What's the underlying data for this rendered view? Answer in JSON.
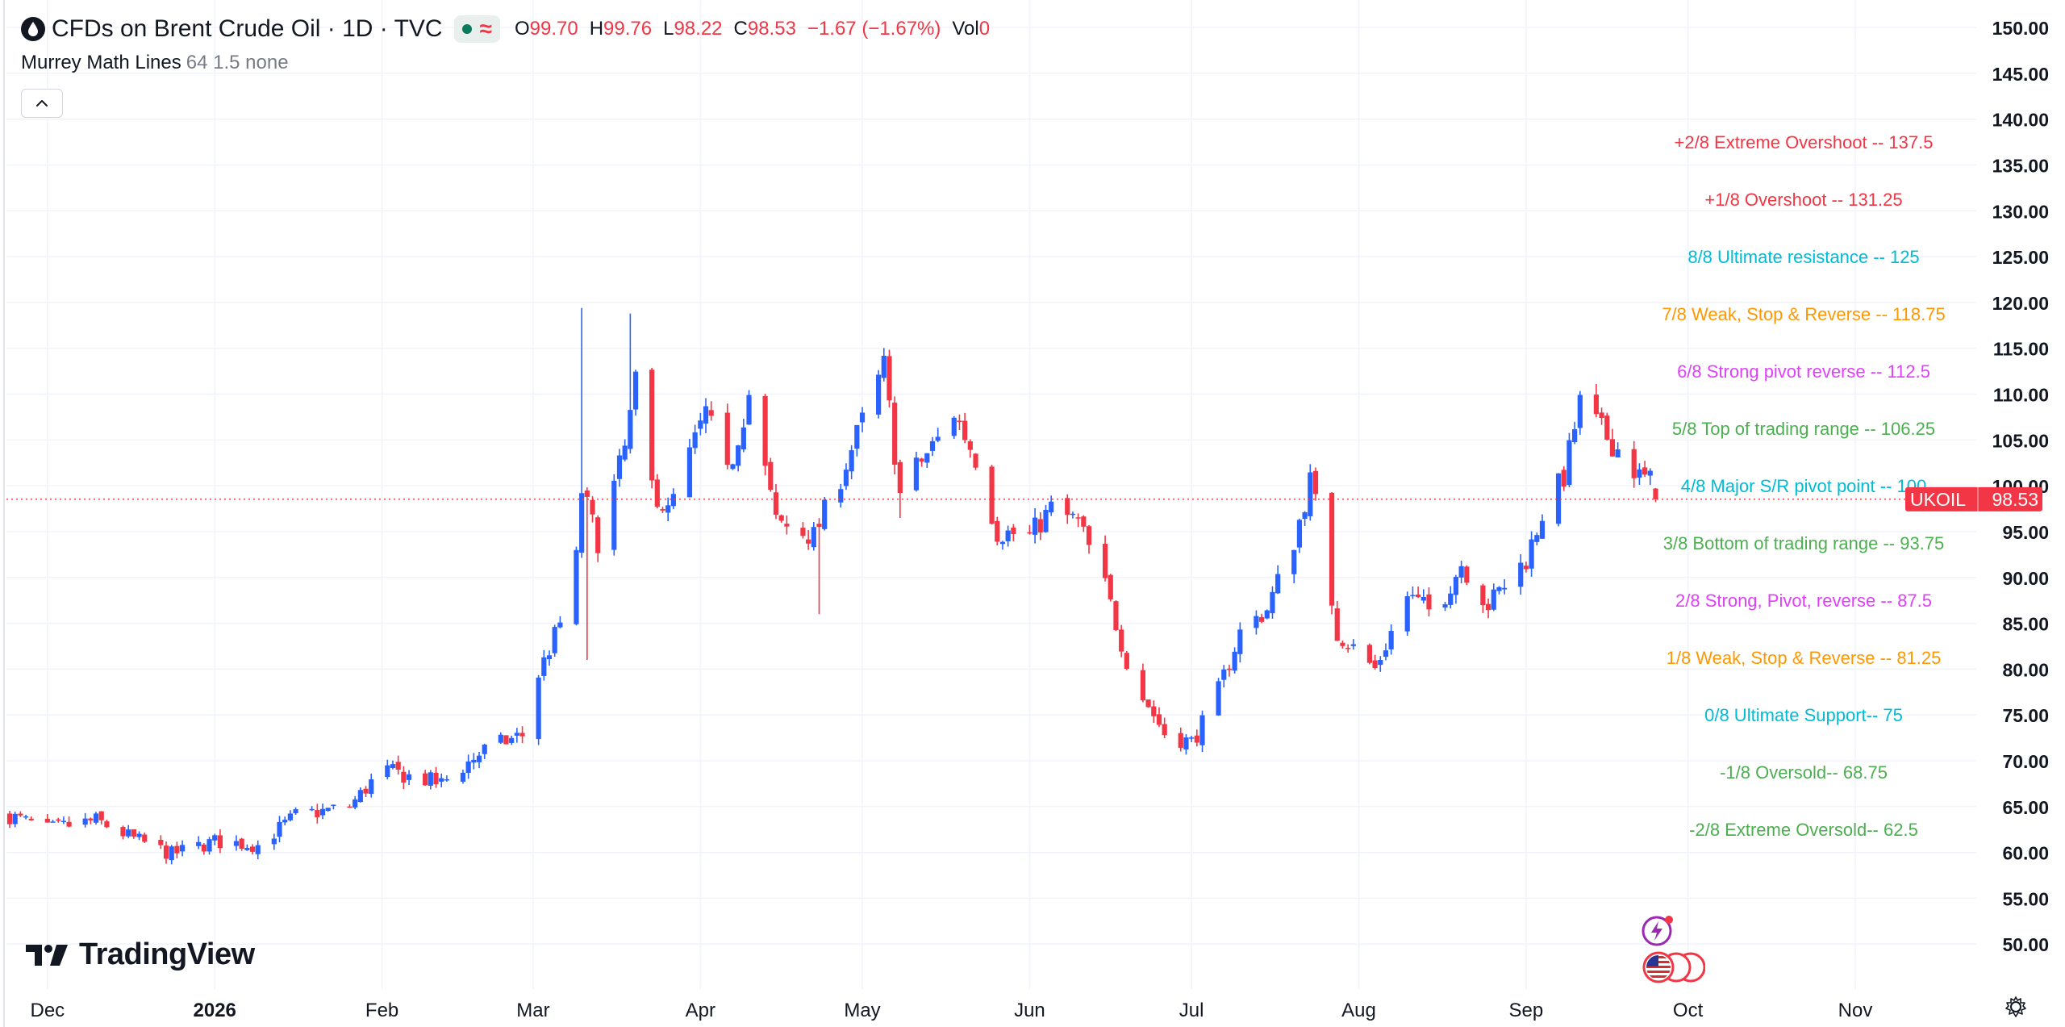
{
  "header": {
    "title": "CFDs on Brent Crude Oil · 1D · TVC",
    "ohlc": [
      {
        "label": "O",
        "value": "99.70"
      },
      {
        "label": "H",
        "value": "99.76"
      },
      {
        "label": "L",
        "value": "98.22"
      },
      {
        "label": "C",
        "value": "98.53"
      }
    ],
    "change": "−1.67 (−1.67%)",
    "volume_label": "Vol",
    "volume_value": "0"
  },
  "indicator": {
    "name": "Murrey Math Lines",
    "params": "64 1.5 none"
  },
  "logo": {
    "text": "TradingView"
  },
  "price_badge": {
    "symbol": "UKOIL",
    "price": "98.53"
  },
  "colors": {
    "up": "#2962ff",
    "down": "#f23645",
    "grid": "#f0f3fa",
    "axis_text": "#131722",
    "price_line": "#f23645",
    "ml_red": "#f23645",
    "ml_cyan": "#00bcd4",
    "ml_orange": "#ff9800",
    "ml_magenta": "#e040fb",
    "ml_green": "#4caf50"
  },
  "chart_data": {
    "type": "candlestick",
    "y_axis": {
      "range": [
        46.5,
        153.0
      ],
      "ticks": [
        "150.00",
        "145.00",
        "140.00",
        "135.00",
        "130.00",
        "125.00",
        "120.00",
        "115.00",
        "110.00",
        "105.00",
        "100.00",
        "95.00",
        "90.00",
        "85.00",
        "80.00",
        "75.00",
        "70.00",
        "65.00",
        "60.00",
        "55.00",
        "50.00"
      ],
      "tick_values": [
        150,
        145,
        140,
        135,
        130,
        125,
        120,
        115,
        110,
        105,
        100,
        95,
        90,
        85,
        80,
        75,
        70,
        65,
        60,
        55,
        50
      ]
    },
    "x_axis": {
      "labels": [
        {
          "text": "Dec",
          "date": "2025-12-01",
          "bold": false
        },
        {
          "text": "2026",
          "date": "2026-01-01",
          "bold": true
        },
        {
          "text": "Feb",
          "date": "2026-02-01",
          "bold": false
        },
        {
          "text": "Mar",
          "date": "2026-03-01",
          "bold": false
        },
        {
          "text": "Apr",
          "date": "2026-04-01",
          "bold": false
        },
        {
          "text": "May",
          "date": "2026-05-01",
          "bold": false
        },
        {
          "text": "Jun",
          "date": "2026-06-01",
          "bold": false
        },
        {
          "text": "Jul",
          "date": "2026-07-01",
          "bold": false
        },
        {
          "text": "Aug",
          "date": "2026-08-01",
          "bold": false
        },
        {
          "text": "Sep",
          "date": "2026-09-01",
          "bold": false
        },
        {
          "text": "Oct",
          "date": "2026-10-01",
          "bold": false
        },
        {
          "text": "Nov",
          "date": "2026-11-01",
          "bold": false
        }
      ]
    },
    "last_price": 98.53,
    "murrey_lines": [
      {
        "label": "+2/8 Extreme Overshoot --  137.5",
        "value": 137.5,
        "color": "#f23645"
      },
      {
        "label": "+1/8 Overshoot --  131.25",
        "value": 131.25,
        "color": "#f23645"
      },
      {
        "label": "8/8 Ultimate resistance --  125",
        "value": 125,
        "color": "#00bcd4"
      },
      {
        "label": "7/8 Weak, Stop & Reverse --  118.75",
        "value": 118.75,
        "color": "#ff9800"
      },
      {
        "label": "6/8 Strong pivot reverse --  112.5",
        "value": 112.5,
        "color": "#e040fb"
      },
      {
        "label": "5/8 Top of trading range --  106.25",
        "value": 106.25,
        "color": "#4caf50"
      },
      {
        "label": "4/8 Major S/R pivot point --  100",
        "value": 100,
        "color": "#00bcd4"
      },
      {
        "label": "3/8 Bottom of trading range --  93.75",
        "value": 93.75,
        "color": "#4caf50"
      },
      {
        "label": "2/8 Strong, Pivot, reverse --  87.5",
        "value": 87.5,
        "color": "#e040fb"
      },
      {
        "label": "1/8 Weak, Stop & Reverse --  81.25",
        "value": 81.25,
        "color": "#ff9800"
      },
      {
        "label": "0/8 Ultimate Support--  75",
        "value": 75,
        "color": "#00bcd4"
      },
      {
        "label": "-1/8 Oversold--  68.75",
        "value": 68.75,
        "color": "#4caf50"
      },
      {
        "label": "-2/8 Extreme Oversold--  62.5",
        "value": 62.5,
        "color": "#4caf50"
      }
    ],
    "anchors": [
      {
        "date": "2025-11-24",
        "close": 64.0
      },
      {
        "date": "2025-12-01",
        "close": 62.5
      },
      {
        "date": "2025-12-10",
        "close": 63.5
      },
      {
        "date": "2025-12-17",
        "close": 61.5
      },
      {
        "date": "2025-12-24",
        "close": 59.8
      },
      {
        "date": "2026-01-01",
        "close": 61.2
      },
      {
        "date": "2026-01-09",
        "close": 60.8
      },
      {
        "date": "2026-01-16",
        "close": 64.0
      },
      {
        "date": "2026-01-26",
        "close": 65.0
      },
      {
        "date": "2026-02-01",
        "close": 69.0
      },
      {
        "date": "2026-02-12",
        "close": 67.5
      },
      {
        "date": "2026-02-20",
        "close": 71.2
      },
      {
        "date": "2026-02-27",
        "close": 72.8
      },
      {
        "date": "2026-03-01",
        "close": 78.0
      },
      {
        "date": "2026-03-06",
        "close": 85.0
      },
      {
        "date": "2026-03-09",
        "close": 92.0
      },
      {
        "date": "2026-03-10",
        "close": 99.5
      },
      {
        "date": "2026-03-13",
        "close": 94.0
      },
      {
        "date": "2026-03-18",
        "close": 104.0
      },
      {
        "date": "2026-03-20",
        "close": 111.0
      },
      {
        "date": "2026-03-23",
        "close": 100.0
      },
      {
        "date": "2026-03-26",
        "close": 97.0
      },
      {
        "date": "2026-04-02",
        "close": 108.0
      },
      {
        "date": "2026-04-06",
        "close": 101.0
      },
      {
        "date": "2026-04-10",
        "close": 110.0
      },
      {
        "date": "2026-04-15",
        "close": 96.0
      },
      {
        "date": "2026-04-22",
        "close": 94.5
      },
      {
        "date": "2026-04-27",
        "close": 101.0
      },
      {
        "date": "2026-05-01",
        "close": 107.0
      },
      {
        "date": "2026-05-05",
        "close": 113.0
      },
      {
        "date": "2026-05-08",
        "close": 99.0
      },
      {
        "date": "2026-05-11",
        "close": 102.0
      },
      {
        "date": "2026-05-15",
        "close": 105.0
      },
      {
        "date": "2026-05-18",
        "close": 108.0
      },
      {
        "date": "2026-05-22",
        "close": 103.0
      },
      {
        "date": "2026-05-26",
        "close": 95.0
      },
      {
        "date": "2026-06-01",
        "close": 94.5
      },
      {
        "date": "2026-06-05",
        "close": 97.5
      },
      {
        "date": "2026-06-10",
        "close": 96.0
      },
      {
        "date": "2026-06-15",
        "close": 89.0
      },
      {
        "date": "2026-06-20",
        "close": 79.0
      },
      {
        "date": "2026-06-26",
        "close": 73.0
      },
      {
        "date": "2026-07-01",
        "close": 72.0
      },
      {
        "date": "2026-07-05",
        "close": 76.0
      },
      {
        "date": "2026-07-10",
        "close": 84.0
      },
      {
        "date": "2026-07-15",
        "close": 86.5
      },
      {
        "date": "2026-07-20",
        "close": 94.0
      },
      {
        "date": "2026-07-23",
        "close": 100.5
      },
      {
        "date": "2026-07-24",
        "close": 98.0
      },
      {
        "date": "2026-07-28",
        "close": 84.0
      },
      {
        "date": "2026-08-04",
        "close": 80.0
      },
      {
        "date": "2026-08-10",
        "close": 88.0
      },
      {
        "date": "2026-08-15",
        "close": 86.0
      },
      {
        "date": "2026-08-20",
        "close": 91.5
      },
      {
        "date": "2026-08-25",
        "close": 87.0
      },
      {
        "date": "2026-09-01",
        "close": 92.0
      },
      {
        "date": "2026-09-04",
        "close": 97.0
      },
      {
        "date": "2026-09-08",
        "close": 101.0
      },
      {
        "date": "2026-09-11",
        "close": 109.0
      },
      {
        "date": "2026-09-15",
        "close": 106.0
      },
      {
        "date": "2026-09-18",
        "close": 104.0
      },
      {
        "date": "2026-09-22",
        "close": 101.0
      },
      {
        "date": "2026-09-25",
        "close": 100.2
      },
      {
        "date": "2026-09-26",
        "close": 98.53
      }
    ],
    "spikes": [
      {
        "date": "2026-03-10",
        "high": 119.4
      },
      {
        "date": "2026-03-11",
        "low": 81.0
      },
      {
        "date": "2026-03-19",
        "high": 118.8
      },
      {
        "date": "2026-04-23",
        "low": 86.0
      },
      {
        "date": "2026-05-08",
        "low": 96.5
      }
    ]
  }
}
